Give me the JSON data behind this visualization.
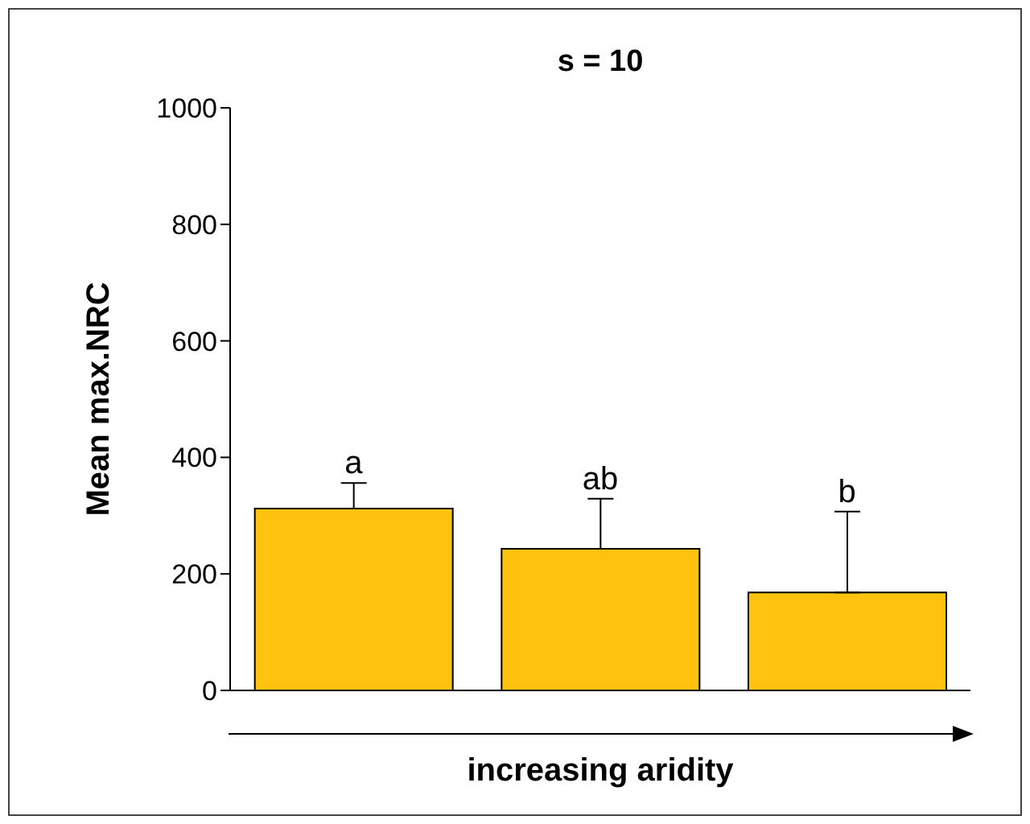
{
  "chart_data": {
    "type": "bar",
    "title": "s = 10",
    "xlabel": "increasing aridity",
    "ylabel": "Mean max.NRC",
    "categories": [
      null,
      null,
      null
    ],
    "values": [
      312,
      243,
      168
    ],
    "errors": [
      [
        312,
        356
      ],
      [
        243,
        329
      ],
      [
        168,
        307
      ]
    ],
    "color": "#ffc20e",
    "ylim": [
      0,
      1000
    ],
    "yticks": [
      0,
      200,
      400,
      600,
      800,
      1000
    ],
    "annotations": [
      {
        "text": "a",
        "y": 356
      },
      {
        "text": "ab",
        "y": 329
      },
      {
        "text": "b",
        "y": 307
      }
    ],
    "grid": false,
    "legend": false
  }
}
